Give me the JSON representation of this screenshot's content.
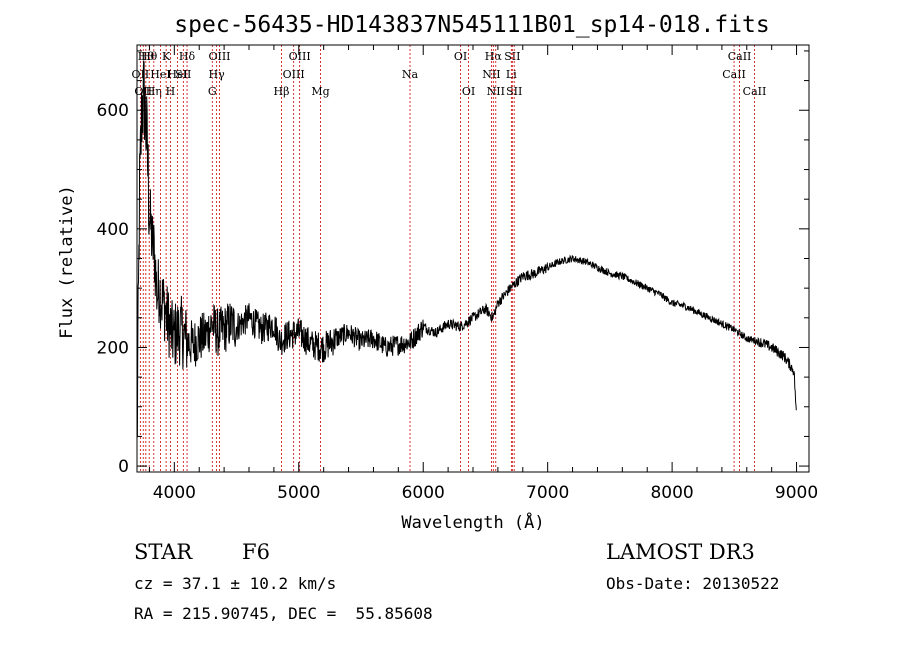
{
  "chart_data": {
    "type": "line",
    "title": "spec-56435-HD143837N545111B01_sp14-018.fits",
    "xlabel": "Wavelength (Å)",
    "ylabel": "Flux (relative)",
    "xlim": [
      3700,
      9100
    ],
    "ylim": [
      -10,
      710
    ],
    "xticks": [
      4000,
      5000,
      6000,
      7000,
      8000,
      9000
    ],
    "yticks": [
      0,
      200,
      400,
      600
    ],
    "series": [
      {
        "name": "spectrum",
        "x": [
          3700,
          3720,
          3740,
          3760,
          3780,
          3800,
          3820,
          3840,
          3860,
          3880,
          3900,
          3920,
          3940,
          3960,
          3980,
          4000,
          4050,
          4100,
          4150,
          4200,
          4250,
          4300,
          4350,
          4400,
          4450,
          4500,
          4600,
          4700,
          4800,
          4850,
          4900,
          5000,
          5100,
          5200,
          5300,
          5400,
          5500,
          5600,
          5700,
          5800,
          5900,
          6000,
          6100,
          6200,
          6300,
          6400,
          6500,
          6560,
          6600,
          6700,
          6800,
          6900,
          7000,
          7100,
          7200,
          7300,
          7400,
          7500,
          7600,
          7700,
          7800,
          7900,
          8000,
          8100,
          8200,
          8300,
          8400,
          8500,
          8600,
          8700,
          8800,
          8900,
          8980,
          9000
        ],
        "y": [
          20,
          450,
          610,
          620,
          540,
          430,
          380,
          360,
          290,
          300,
          280,
          270,
          250,
          240,
          220,
          220,
          230,
          210,
          205,
          215,
          220,
          240,
          225,
          230,
          240,
          235,
          250,
          230,
          240,
          210,
          220,
          225,
          205,
          200,
          215,
          225,
          210,
          215,
          200,
          205,
          210,
          235,
          225,
          240,
          235,
          250,
          265,
          250,
          275,
          300,
          320,
          325,
          335,
          345,
          350,
          345,
          335,
          325,
          320,
          310,
          300,
          290,
          275,
          270,
          260,
          250,
          240,
          230,
          215,
          210,
          200,
          185,
          160,
          80
        ]
      }
    ],
    "lines": [
      {
        "wl": 3727,
        "label": "OII",
        "row": 2
      },
      {
        "wl": 3750,
        "label": "OII",
        "row": 3
      },
      {
        "wl": 3771,
        "label": "Hθ",
        "row": 1
      },
      {
        "wl": 3798,
        "label": "Hθ",
        "row": 1
      },
      {
        "wl": 3835,
        "label": "Hη",
        "row": 3
      },
      {
        "wl": 3889,
        "label": "HeI",
        "row": 2
      },
      {
        "wl": 3934,
        "label": "K",
        "row": 1
      },
      {
        "wl": 3969,
        "label": "H",
        "row": 3
      },
      {
        "wl": 4026,
        "label": "HeI",
        "row": 2
      },
      {
        "wl": 4072,
        "label": "SII",
        "row": 2
      },
      {
        "wl": 4102,
        "label": "Hδ",
        "row": 1
      },
      {
        "wl": 4305,
        "label": "G",
        "row": 3
      },
      {
        "wl": 4340,
        "label": "Hγ",
        "row": 2
      },
      {
        "wl": 4363,
        "label": "OIII",
        "row": 1
      },
      {
        "wl": 4861,
        "label": "Hβ",
        "row": 3
      },
      {
        "wl": 4959,
        "label": "OIII",
        "row": 2
      },
      {
        "wl": 5007,
        "label": "OIII",
        "row": 1
      },
      {
        "wl": 5175,
        "label": "Mg",
        "row": 3
      },
      {
        "wl": 5894,
        "label": "Na",
        "row": 2
      },
      {
        "wl": 6300,
        "label": "OI",
        "row": 1
      },
      {
        "wl": 6364,
        "label": "OI",
        "row": 3
      },
      {
        "wl": 6548,
        "label": "NII",
        "row": 2
      },
      {
        "wl": 6563,
        "label": "Hα",
        "row": 1
      },
      {
        "wl": 6583,
        "label": "NII",
        "row": 3
      },
      {
        "wl": 6708,
        "label": "Li",
        "row": 2
      },
      {
        "wl": 6716,
        "label": "SII",
        "row": 1
      },
      {
        "wl": 6731,
        "label": "SII",
        "row": 3
      },
      {
        "wl": 8498,
        "label": "CaII",
        "row": 2
      },
      {
        "wl": 8542,
        "label": "CaII",
        "row": 1
      },
      {
        "wl": 8662,
        "label": "CaII",
        "row": 3
      }
    ]
  },
  "info": {
    "obj_class": "STAR",
    "subclass": "F6",
    "cz": "cz = 37.1 ± 10.2 km/s",
    "coords": "RA = 215.90745, DEC =  55.85608",
    "survey": "LAMOST DR3",
    "obs_date": "Obs-Date: 20130522"
  },
  "colors": {
    "spectrum": "#000000",
    "line_marker": "#cc0000",
    "axes": "#000000"
  }
}
